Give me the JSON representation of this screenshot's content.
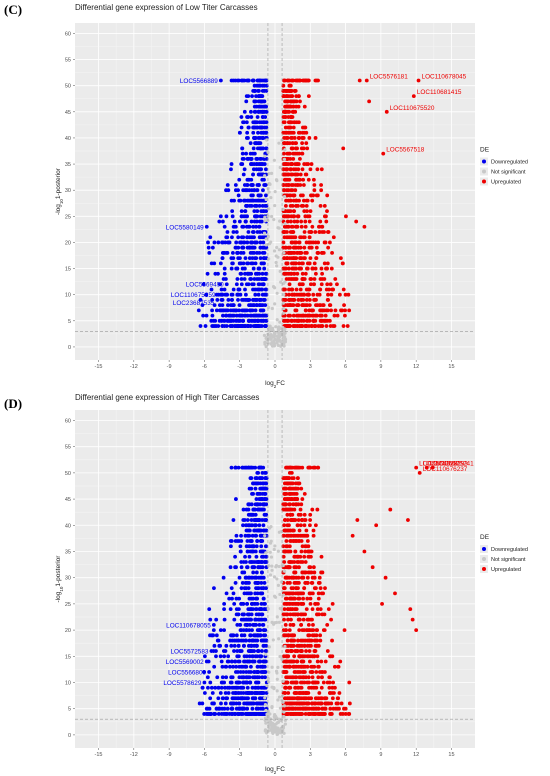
{
  "chart_data": [
    {
      "panel": "(C)",
      "type": "scatter",
      "title": "Differential gene expression of Low Titer Carcasses",
      "xlabel": "log2FC",
      "ylabel": "-log10 1-posterior",
      "xlim": [
        -17,
        17
      ],
      "ylim": [
        -2.5,
        62
      ],
      "x_ticks": [
        -15,
        -12,
        -9,
        -6,
        -3,
        0,
        3,
        6,
        9,
        12,
        15
      ],
      "y_ticks": [
        0,
        5,
        10,
        15,
        20,
        25,
        30,
        35,
        40,
        45,
        50,
        55,
        60
      ],
      "fc_thresholds": [
        -0.6,
        0.6
      ],
      "significance_threshold": 3,
      "grid": true,
      "legend": {
        "title": "DE",
        "placement": "right",
        "entries": [
          {
            "label": "Downregulated",
            "color": "#0000ee"
          },
          {
            "label": "Not significant",
            "color": "#c8c8c8"
          },
          {
            "label": "Upregulated",
            "color": "#ee0000"
          }
        ]
      },
      "series": [
        {
          "name": "Downregulated",
          "color": "#0000ee",
          "y_max": 51,
          "points": [
            [
              -4.6,
              51
            ],
            [
              -5.8,
              23
            ],
            [
              -5.5,
              21
            ],
            [
              -4.5,
              20
            ],
            [
              -4.1,
              12
            ],
            [
              -4.8,
              10
            ],
            [
              -4.9,
              9
            ],
            [
              -4.0,
              8
            ],
            [
              -3.6,
              25
            ]
          ]
        },
        {
          "name": "Upregulated",
          "color": "#ee0000",
          "y_max": 51,
          "points": [
            [
              7.2,
              51
            ],
            [
              7.8,
              51
            ],
            [
              12.2,
              51
            ],
            [
              11.8,
              48
            ],
            [
              9.5,
              45
            ],
            [
              8.0,
              47
            ],
            [
              5.8,
              38
            ],
            [
              9.2,
              37
            ],
            [
              6.9,
              24
            ],
            [
              7.6,
              23
            ],
            [
              5.6,
              17
            ],
            [
              5.0,
              21
            ],
            [
              4.5,
              22
            ]
          ]
        }
      ],
      "annotations": [
        {
          "text": "LOC5566889",
          "x": -4.6,
          "y": 51,
          "series": "Downregulated"
        },
        {
          "text": "LOC5580149",
          "x": -5.8,
          "y": 23,
          "series": "Downregulated"
        },
        {
          "text": "LOC5569490",
          "x": -4.1,
          "y": 12,
          "series": "Downregulated"
        },
        {
          "text": "LOC110675359",
          "x": -4.8,
          "y": 10,
          "series": "Downregulated"
        },
        {
          "text": "LOC23687535",
          "x": -4.9,
          "y": 8.5,
          "series": "Downregulated"
        },
        {
          "text": "LOC110678045",
          "x": 12.2,
          "y": 51,
          "series": "Upregulated"
        },
        {
          "text": "LOC5576181",
          "x": 7.8,
          "y": 51,
          "series": "Upregulated"
        },
        {
          "text": "LOC110681415",
          "x": 11.8,
          "y": 48,
          "series": "Upregulated"
        },
        {
          "text": "LOC110675520",
          "x": 9.5,
          "y": 45,
          "series": "Upregulated"
        },
        {
          "text": "LOC5567518",
          "x": 9.2,
          "y": 37,
          "series": "Upregulated"
        }
      ]
    },
    {
      "panel": "(D)",
      "type": "scatter",
      "title": "Differential gene expression of High Titer Carcasses",
      "xlabel": "log2FC",
      "ylabel": "-log10 1-posterior",
      "xlim": [
        -17,
        17
      ],
      "ylim": [
        -2.5,
        62
      ],
      "x_ticks": [
        -15,
        -12,
        -9,
        -6,
        -3,
        0,
        3,
        6,
        9,
        12,
        15
      ],
      "y_ticks": [
        0,
        5,
        10,
        15,
        20,
        25,
        30,
        35,
        40,
        45,
        50,
        55,
        60
      ],
      "fc_thresholds": [
        -0.6,
        0.6
      ],
      "significance_threshold": 3,
      "grid": true,
      "legend": {
        "title": "DE",
        "placement": "right",
        "entries": [
          {
            "label": "Downregulated",
            "color": "#0000ee"
          },
          {
            "label": "Not significant",
            "color": "#c8c8c8"
          },
          {
            "label": "Upregulated",
            "color": "#ee0000"
          }
        ]
      },
      "series": [
        {
          "name": "Downregulated",
          "color": "#0000ee",
          "y_max": 51,
          "points": [
            [
              -5.2,
              21
            ],
            [
              -5.8,
              14
            ],
            [
              -5.6,
              12
            ],
            [
              -6.0,
              10
            ],
            [
              -5.7,
              9
            ],
            [
              -5.4,
              16
            ],
            [
              -4.8,
              18
            ],
            [
              -5.0,
              22
            ]
          ]
        },
        {
          "name": "Upregulated",
          "color": "#ee0000",
          "y_max": 51,
          "points": [
            [
              12.0,
              51
            ],
            [
              12.9,
              51
            ],
            [
              13.4,
              51
            ],
            [
              12.3,
              50
            ],
            [
              11.3,
              41
            ],
            [
              11.5,
              24
            ],
            [
              11.7,
              22
            ],
            [
              12.0,
              20
            ],
            [
              9.8,
              43
            ],
            [
              8.6,
              40
            ],
            [
              7.0,
              41
            ],
            [
              6.6,
              38
            ],
            [
              7.6,
              35
            ],
            [
              8.3,
              32
            ],
            [
              9.4,
              30
            ],
            [
              10.2,
              27
            ],
            [
              9.1,
              25
            ]
          ]
        }
      ],
      "annotations": [
        {
          "text": "LOC110678055",
          "x": -5.2,
          "y": 21,
          "series": "Downregulated"
        },
        {
          "text": "LOC5572583",
          "x": -5.4,
          "y": 16,
          "series": "Downregulated"
        },
        {
          "text": "LOC5569002",
          "x": -5.8,
          "y": 14,
          "series": "Downregulated"
        },
        {
          "text": "LOC5566809",
          "x": -5.6,
          "y": 12,
          "series": "Downregulated"
        },
        {
          "text": "LOC5578629",
          "x": -6.0,
          "y": 10,
          "series": "Downregulated"
        },
        {
          "text": "LOC5578521",
          "x": 12.3,
          "y": 51,
          "series": "Upregulated"
        },
        {
          "text": "LOC5575241",
          "x": 13.4,
          "y": 51,
          "series": "Upregulated"
        },
        {
          "text": "LOC5565528",
          "x": 12.0,
          "y": 51,
          "series": "Upregulated"
        },
        {
          "text": "LOC5575293",
          "x": 12.9,
          "y": 51,
          "series": "Upregulated"
        },
        {
          "text": "LOC110676237",
          "x": 12.3,
          "y": 50,
          "series": "Upregulated"
        }
      ]
    }
  ]
}
